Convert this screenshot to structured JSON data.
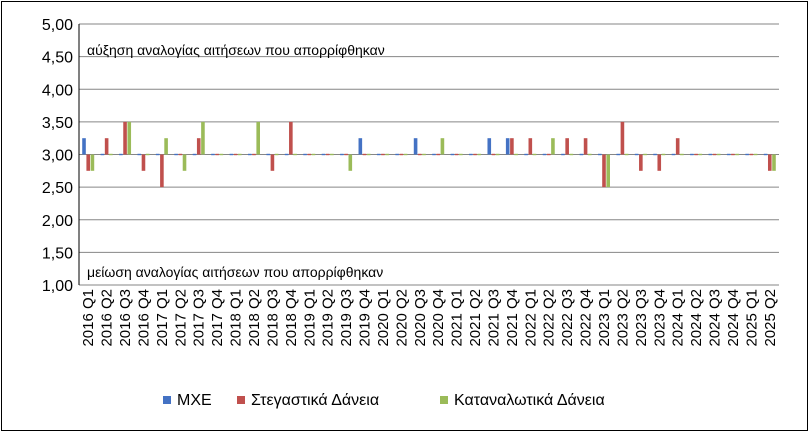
{
  "chart_data": {
    "type": "bar",
    "ylim": [
      1.0,
      5.0
    ],
    "yticks": [
      "1,00",
      "1,50",
      "2,00",
      "2,50",
      "3,00",
      "3,50",
      "4,00",
      "4,50",
      "5,00"
    ],
    "baseline": 3.0,
    "grid": true,
    "legend_position": "bottom",
    "annotations": {
      "top": "αύξηση αναλογίας αιτήσεων που απορρίφθηκαν",
      "bottom": "μείωση αναλογίας αιτήσεων που απορρίφθηκαν"
    },
    "categories": [
      "2016 Q1",
      "2016 Q2",
      "2016 Q3",
      "2016 Q4",
      "2017 Q1",
      "2017 Q2",
      "2017 Q3",
      "2017 Q4",
      "2018 Q1",
      "2018 Q2",
      "2018 Q3",
      "2018 Q4",
      "2019 Q1",
      "2019 Q2",
      "2019 Q3",
      "2019 Q4",
      "2020 Q1",
      "2020 Q2",
      "2020 Q3",
      "2020 Q4",
      "2021 Q1",
      "2021 Q2",
      "2021 Q3",
      "2021 Q4",
      "2022 Q1",
      "2022 Q2",
      "2022 Q3",
      "2022 Q4",
      "2023 Q1",
      "2023 Q2",
      "2023 Q3",
      "2023 Q4",
      "2024 Q1",
      "2024 Q2",
      "2024 Q3",
      "2024 Q4",
      "2025 Q1",
      "2025 Q2"
    ],
    "series": [
      {
        "name": "ΜΧΕ",
        "color": "#4472C4",
        "values": [
          3.25,
          3.0,
          3.0,
          3.0,
          3.0,
          3.0,
          3.0,
          3.0,
          3.0,
          3.0,
          3.0,
          3.0,
          3.0,
          3.0,
          3.0,
          3.25,
          3.0,
          3.0,
          3.25,
          3.0,
          3.0,
          3.0,
          3.25,
          3.25,
          3.0,
          3.0,
          3.0,
          3.0,
          3.0,
          3.0,
          3.0,
          3.0,
          3.0,
          3.0,
          3.0,
          3.0,
          3.0,
          3.0
        ]
      },
      {
        "name": "Στεγαστικά Δάνεια",
        "color": "#C0504D",
        "values": [
          2.75,
          3.25,
          3.5,
          2.75,
          2.5,
          3.0,
          3.25,
          3.0,
          3.0,
          3.0,
          2.75,
          3.5,
          3.0,
          3.0,
          3.0,
          3.0,
          3.0,
          3.0,
          3.0,
          3.0,
          3.0,
          3.0,
          3.0,
          3.25,
          3.25,
          3.0,
          3.25,
          3.25,
          2.5,
          3.5,
          2.75,
          2.75,
          3.25,
          3.0,
          3.0,
          3.0,
          3.0,
          2.75
        ]
      },
      {
        "name": "Καταναλωτικά Δάνεια",
        "color": "#9BBB59",
        "values": [
          2.75,
          3.0,
          3.5,
          3.0,
          3.25,
          2.75,
          3.5,
          3.0,
          3.0,
          3.5,
          3.0,
          3.0,
          3.0,
          3.0,
          2.75,
          3.0,
          3.0,
          3.0,
          3.0,
          3.25,
          3.0,
          3.0,
          3.0,
          3.0,
          3.0,
          3.25,
          3.0,
          3.0,
          2.5,
          3.0,
          3.0,
          3.0,
          3.0,
          3.0,
          3.0,
          3.0,
          3.0,
          2.75
        ]
      }
    ]
  }
}
